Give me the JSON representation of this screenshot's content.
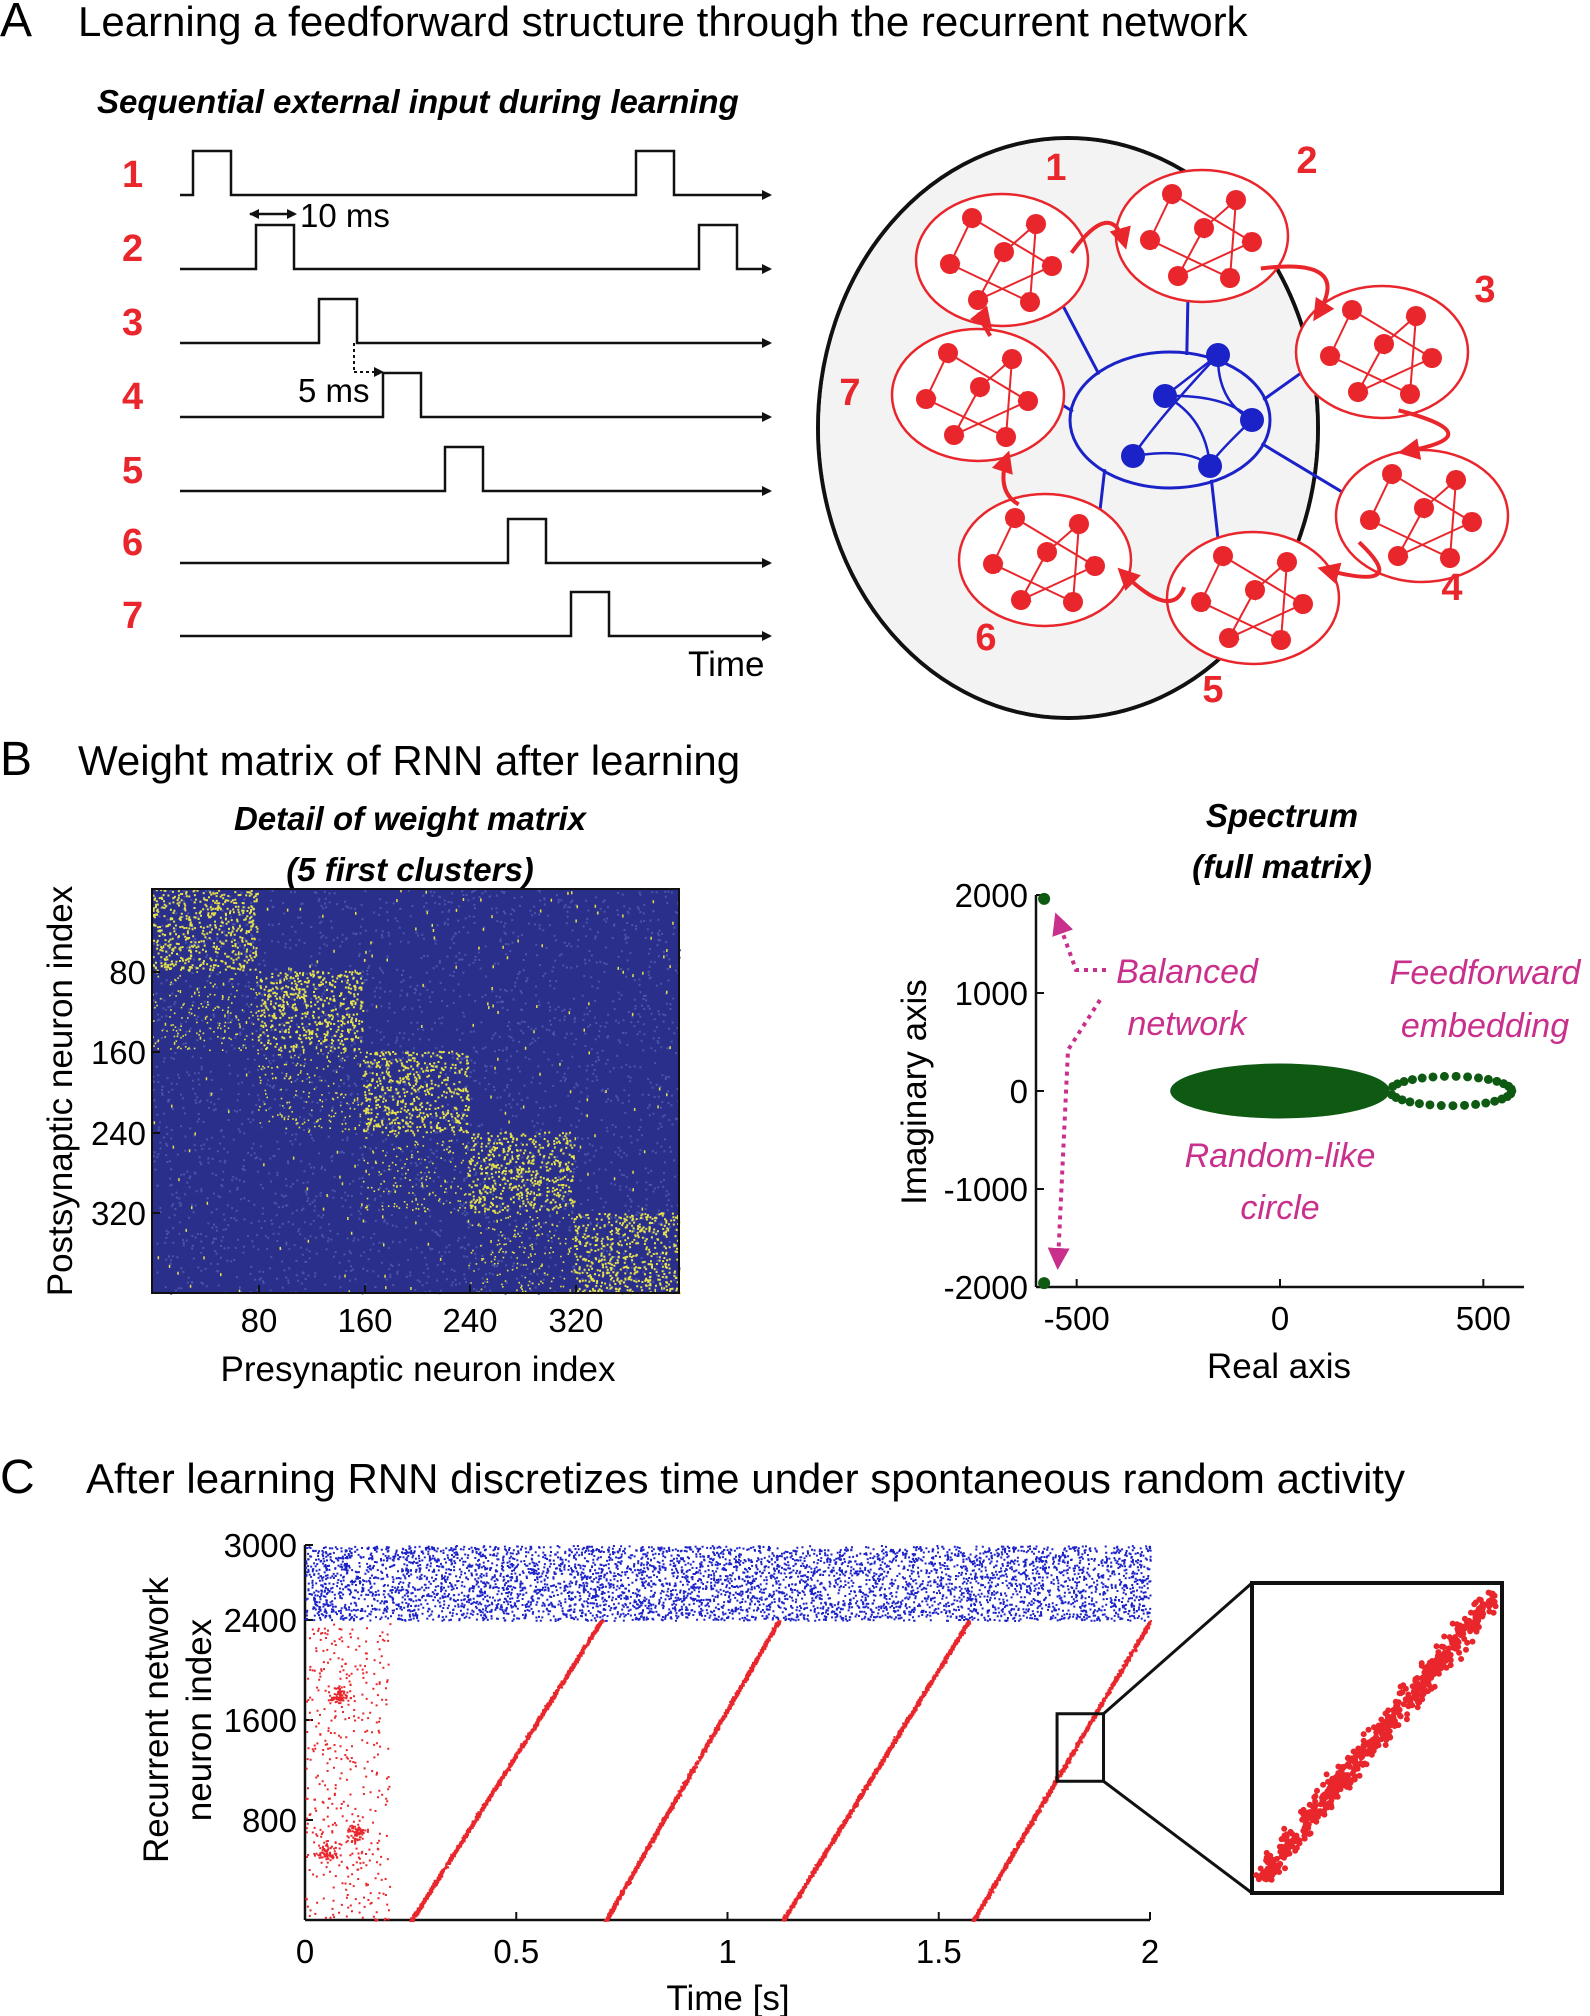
{
  "colors": {
    "accent_red": "#e8262b",
    "inhibitory_blue": "#1b22c8",
    "matrix_bg": "#2a2f8c",
    "matrix_spark": "#e6e24a",
    "spectrum_green": "#0f5a12",
    "annotation_magenta": "#c8308c"
  },
  "panelA": {
    "letter": "A",
    "title": "Learning a feedforward structure through the recurrent network",
    "input_heading": "Sequential external input during learning",
    "channels": [
      "1",
      "2",
      "3",
      "4",
      "5",
      "6",
      "7"
    ],
    "pulse_width_label": "10 ms",
    "gap_label": "5 ms",
    "time_label": "Time",
    "cluster_labels": [
      "1",
      "2",
      "3",
      "4",
      "5",
      "6",
      "7"
    ]
  },
  "panelB": {
    "letter": "B",
    "title": "Weight matrix of RNN after learning",
    "matrix_heading_1": "Detail of weight matrix",
    "matrix_heading_2": "(5 first clusters)",
    "matrix_ticks": [
      "80",
      "160",
      "240",
      "320"
    ],
    "matrix_ylabel": "Postsynaptic neuron index",
    "matrix_xlabel": "Presynaptic neuron index",
    "spectrum_heading_1": "Spectrum",
    "spectrum_heading_2": "(full matrix)",
    "spectrum_ylabel": "Imaginary axis",
    "spectrum_xlabel": "Real axis",
    "spectrum_yticks": [
      "2000",
      "1000",
      "0",
      "-1000",
      "-2000"
    ],
    "spectrum_xticks": [
      "-500",
      "0",
      "500"
    ],
    "ann_balanced_1": "Balanced",
    "ann_balanced_2": "network",
    "ann_ff_1": "Feedforward",
    "ann_ff_2": "embedding",
    "ann_random_1": "Random-like",
    "ann_random_2": "circle"
  },
  "panelC": {
    "letter": "C",
    "title": "After learning RNN discretizes time under spontaneous random activity",
    "yticks": [
      "3000",
      "2400",
      "1600",
      "800"
    ],
    "xticks": [
      "0",
      "0.5",
      "1",
      "1.5",
      "2"
    ],
    "ylabel_1": "Recurrent network",
    "ylabel_2": "neuron index",
    "xlabel": "Time [s]"
  },
  "chart_data": {
    "type": "scatter",
    "x_range": [
      0,
      2
    ],
    "y_range": [
      0,
      3000
    ],
    "series": [
      {
        "name": "",
        "color": "#1b22c8",
        "x_range": [
          0,
          2
        ],
        "y_range": [
          2400,
          3000
        ]
      },
      {
        "name": "",
        "color": "#e8262b",
        "sweeps": [
          {
            "start_time": 0.25,
            "end_time": 0.7
          },
          {
            "start_time": 0.71,
            "end_time": 1.12
          },
          {
            "start_time": 1.13,
            "end_time": 1.57
          },
          {
            "start_time": 1.58,
            "end_time": 2.0
          }
        ]
      }
    ]
  }
}
